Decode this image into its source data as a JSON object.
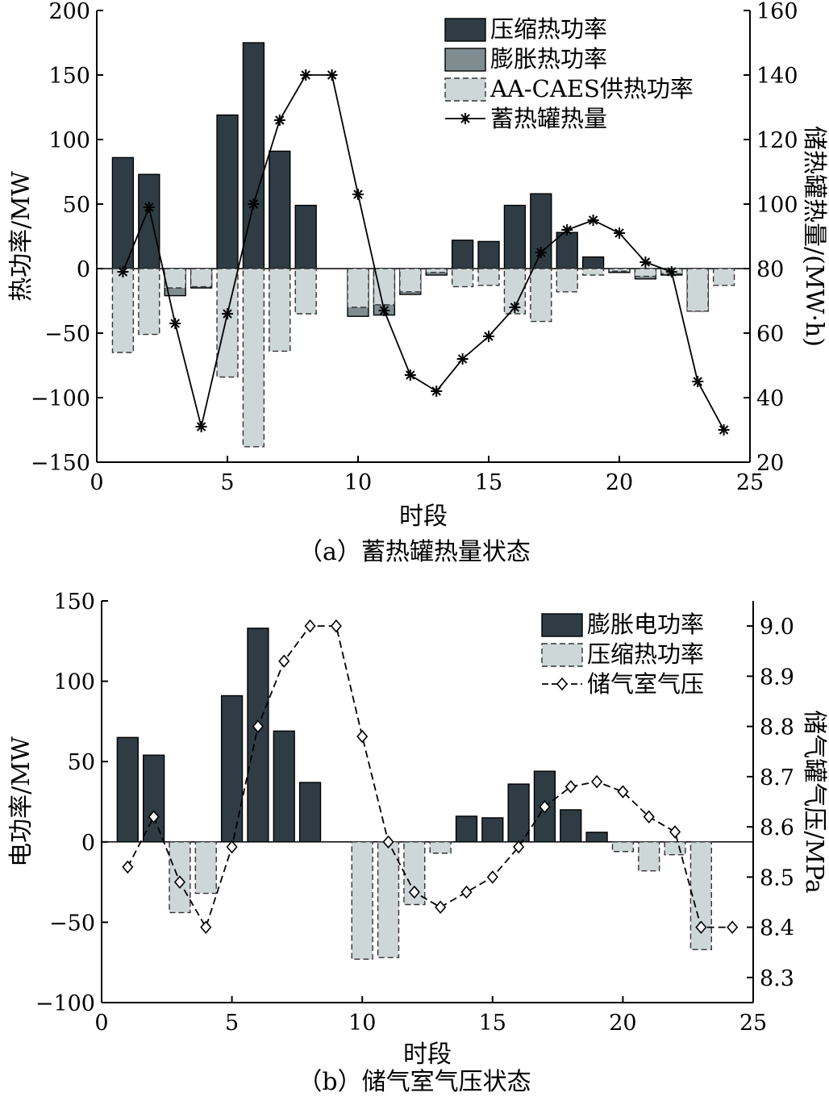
{
  "colors": {
    "dark_bar": "#2f3c44",
    "mid_bar": "#7f8c90",
    "light_bar": "#cdd7d8",
    "line": "#000000",
    "background": "#ffffff"
  },
  "chart_data": [
    {
      "id": "a",
      "type": "bar",
      "caption": "（a）蓄热罐热量状态",
      "xlabel": "时段",
      "ylabel": "热功率/MW",
      "y2label": "储热罐热量/(MW·h)",
      "xlim": [
        0,
        25
      ],
      "ylim": [
        -150,
        200
      ],
      "y2lim": [
        20,
        160
      ],
      "x_ticks": [
        0,
        5,
        10,
        15,
        20,
        25
      ],
      "y_ticks": [
        -150,
        -100,
        -50,
        0,
        50,
        100,
        150,
        200
      ],
      "y2_ticks": [
        20,
        40,
        60,
        80,
        100,
        120,
        140,
        160
      ],
      "y_tick_labels": [
        "−150",
        "−100",
        "−50",
        "0",
        "50",
        "100",
        "150",
        "200"
      ],
      "legend_position": "top-right",
      "legend": [
        "压缩热功率",
        "膨胀热功率",
        "AA-CAES供热功率",
        "蓄热罐热量"
      ],
      "x": [
        1,
        2,
        3,
        4,
        5,
        6,
        7,
        8,
        9,
        10,
        11,
        12,
        13,
        14,
        15,
        16,
        17,
        18,
        19,
        20,
        21,
        22,
        23,
        24
      ],
      "series": [
        {
          "name": "压缩热功率",
          "type": "bar",
          "style": "solid",
          "color": "#2f3c44",
          "values": [
            86,
            73,
            0,
            0,
            119,
            175,
            91,
            49,
            0,
            0,
            0,
            0,
            0,
            22,
            21,
            49,
            58,
            28,
            9,
            0,
            0,
            0,
            0,
            0
          ]
        },
        {
          "name": "膨胀热功率",
          "type": "bar",
          "style": "solid",
          "color": "#7f8c90",
          "values": [
            0,
            0,
            -21,
            -15,
            0,
            0,
            0,
            0,
            0,
            -37,
            -36,
            -20,
            -5,
            0,
            0,
            0,
            0,
            0,
            0,
            -3,
            -8,
            -5,
            -33,
            0
          ]
        },
        {
          "name": "AA-CAES供热功率",
          "type": "bar",
          "style": "dashed",
          "color": "#cdd7d8",
          "values": [
            -65,
            -51,
            -15,
            -14,
            -84,
            -138,
            -64,
            -35,
            0,
            -30,
            -28,
            -18,
            -3,
            -14,
            -13,
            -35,
            -41,
            -18,
            -5,
            -2,
            -6,
            -4,
            -33,
            -13
          ]
        },
        {
          "name": "蓄热罐热量",
          "type": "line",
          "marker": "asterisk",
          "axis": "right",
          "values": [
            79,
            99,
            63,
            31,
            66,
            100,
            126,
            140,
            140,
            103,
            67,
            47,
            42,
            52,
            59,
            68,
            85,
            92,
            95,
            91,
            82,
            79,
            45,
            30
          ]
        }
      ]
    },
    {
      "id": "b",
      "type": "bar",
      "caption": "（b）储气室气压状态",
      "xlabel": "时段",
      "ylabel": "电功率/MW",
      "y2label": "储气罐气压/MPa",
      "xlim": [
        0,
        25
      ],
      "ylim": [
        -100,
        150
      ],
      "y2lim": [
        8.25,
        9.05
      ],
      "x_ticks": [
        0,
        5,
        10,
        15,
        20,
        25
      ],
      "y_ticks": [
        -100,
        -50,
        0,
        50,
        100,
        150
      ],
      "y2_ticks": [
        8.3,
        8.4,
        8.5,
        8.6,
        8.7,
        8.8,
        8.9,
        9.0
      ],
      "y_tick_labels": [
        "−100",
        "−50",
        "0",
        "50",
        "100",
        "150"
      ],
      "y2_tick_labels": [
        "8.3",
        "8.4",
        "8.5",
        "8.6",
        "8.7",
        "8.8",
        "8.9",
        "9.0"
      ],
      "legend_position": "top-right",
      "legend": [
        "膨胀电功率",
        "压缩热功率",
        "储气室气压"
      ],
      "series": [
        {
          "name": "膨胀电功率",
          "type": "bar",
          "style": "solid",
          "color": "#2f3c44",
          "x": [
            1,
            2,
            3,
            4,
            5,
            6,
            7,
            8,
            9,
            10,
            11,
            12,
            13,
            14,
            15,
            16,
            17,
            18,
            19,
            20,
            21,
            22,
            23
          ],
          "values": [
            65,
            54,
            0,
            0,
            91,
            133,
            69,
            37,
            0,
            0,
            0,
            0,
            0,
            16,
            15,
            36,
            44,
            20,
            6,
            0,
            0,
            0,
            0
          ]
        },
        {
          "name": "压缩热功率",
          "type": "bar",
          "style": "dashed",
          "color": "#cdd7d8",
          "x": [
            1,
            2,
            3,
            4,
            5,
            6,
            7,
            8,
            9,
            10,
            11,
            12,
            13,
            14,
            15,
            16,
            17,
            18,
            19,
            20,
            21,
            22,
            23
          ],
          "values": [
            0,
            0,
            -44,
            -32,
            0,
            0,
            0,
            0,
            0,
            -73,
            -72,
            -39,
            -7,
            0,
            0,
            0,
            0,
            0,
            0,
            -6,
            -18,
            -8,
            -67
          ]
        },
        {
          "name": "储气室气压",
          "type": "line",
          "marker": "diamond",
          "style": "dashed",
          "axis": "right",
          "x": [
            1,
            2,
            3,
            4,
            5,
            6,
            7,
            8,
            9,
            10,
            11,
            12,
            13,
            14,
            15,
            16,
            17,
            18,
            19,
            20,
            21,
            22,
            23,
            24.2
          ],
          "values": [
            8.52,
            8.62,
            8.49,
            8.4,
            8.56,
            8.8,
            8.93,
            9.0,
            9.0,
            8.78,
            8.57,
            8.47,
            8.44,
            8.47,
            8.5,
            8.56,
            8.64,
            8.68,
            8.69,
            8.67,
            8.62,
            8.59,
            8.4,
            8.4
          ]
        }
      ]
    }
  ]
}
